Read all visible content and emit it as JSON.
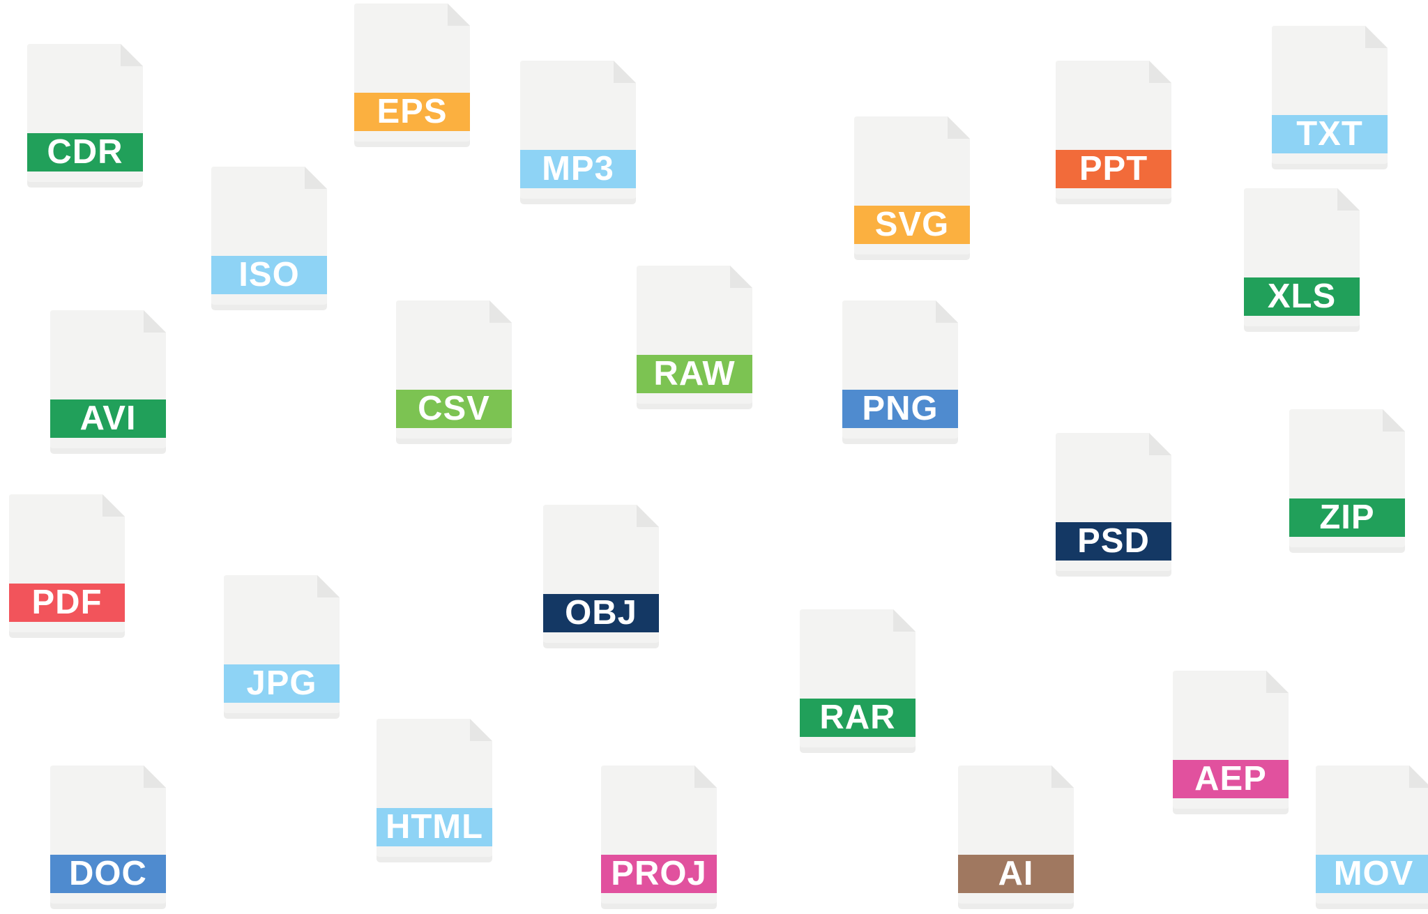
{
  "page_fill": "#f3f3f2",
  "page_fold": "#e6e6e5",
  "page_shadow": "#ececeb",
  "files": [
    {
      "label": "CDR",
      "color": "#21a05a"
    },
    {
      "label": "EPS",
      "color": "#fbb040"
    },
    {
      "label": "MP3",
      "color": "#8ed3f5"
    },
    {
      "label": "SVG",
      "color": "#fbb040"
    },
    {
      "label": "PPT",
      "color": "#f26b3a"
    },
    {
      "label": "TXT",
      "color": "#8ed3f5"
    },
    {
      "label": "ISO",
      "color": "#8ed3f5"
    },
    {
      "label": "XLS",
      "color": "#21a05a"
    },
    {
      "label": "AVI",
      "color": "#21a05a"
    },
    {
      "label": "CSV",
      "color": "#7cc352"
    },
    {
      "label": "RAW",
      "color": "#7cc352"
    },
    {
      "label": "PNG",
      "color": "#4f8bcf"
    },
    {
      "label": "ZIP",
      "color": "#21a05a"
    },
    {
      "label": "PSD",
      "color": "#143864"
    },
    {
      "label": "PDF",
      "color": "#f2545b"
    },
    {
      "label": "OBJ",
      "color": "#143864"
    },
    {
      "label": "JPG",
      "color": "#8ed3f5"
    },
    {
      "label": "RAR",
      "color": "#21a05a"
    },
    {
      "label": "AEP",
      "color": "#e1519e"
    },
    {
      "label": "HTML",
      "color": "#8ed3f5"
    },
    {
      "label": "DOC",
      "color": "#4f8bcf"
    },
    {
      "label": "PROJ",
      "color": "#e1519e"
    },
    {
      "label": "AI",
      "color": "#a07860"
    },
    {
      "label": "MOV",
      "color": "#8ed3f5"
    }
  ]
}
